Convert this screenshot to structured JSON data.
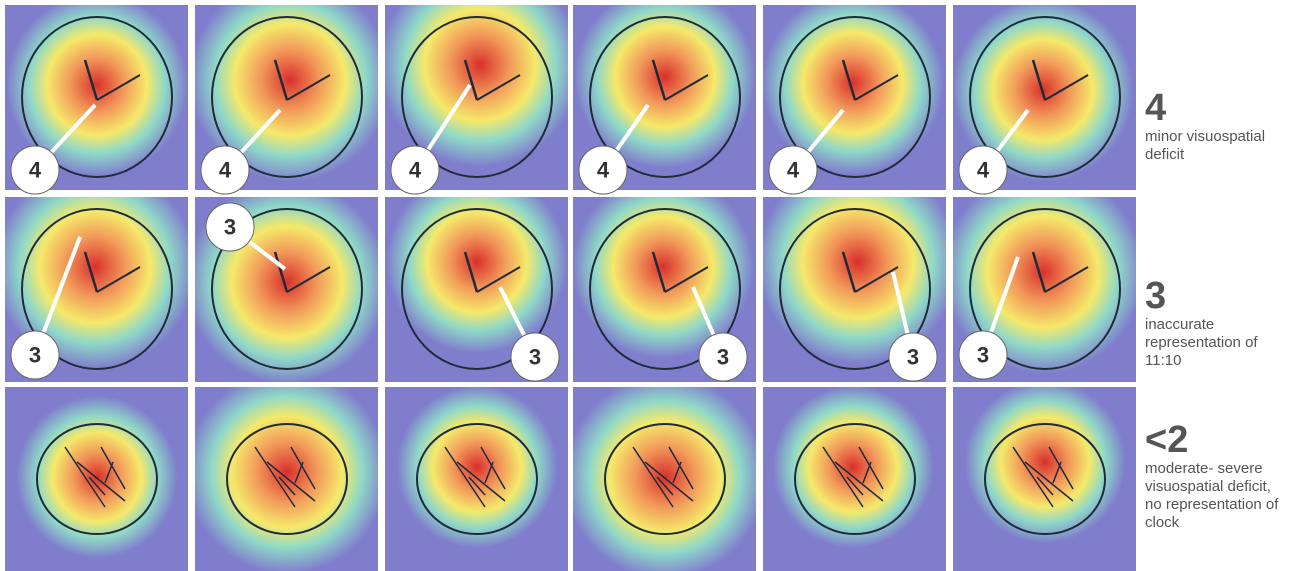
{
  "rows": [
    {
      "score": "4",
      "description": "minor visuospatial deficit",
      "badges": [
        "4",
        "4",
        "4",
        "4",
        "4",
        "4"
      ]
    },
    {
      "score": "3",
      "description": "inaccurate representation of 11:10",
      "badges": [
        "3",
        "3",
        "3",
        "3",
        "3",
        "3"
      ]
    },
    {
      "score": "<2",
      "description": "moderate- severe visuospatial deficit, no representation of clock",
      "badges": []
    }
  ]
}
